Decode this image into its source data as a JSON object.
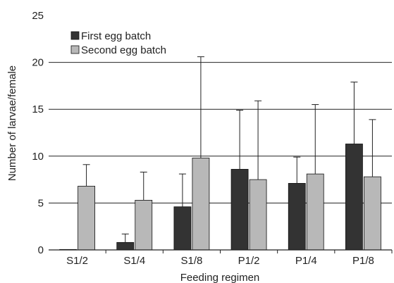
{
  "chart_data": {
    "type": "bar",
    "categories": [
      "S1/2",
      "S1/4",
      "S1/8",
      "P1/2",
      "P1/4",
      "P1/8"
    ],
    "series": [
      {
        "name": "First egg batch",
        "values": [
          0.05,
          0.8,
          4.6,
          8.6,
          7.1,
          11.3
        ],
        "error_upper": [
          0,
          0.9,
          3.5,
          6.3,
          2.8,
          6.6
        ],
        "color": "#333333"
      },
      {
        "name": "Second egg batch",
        "values": [
          6.8,
          5.3,
          9.8,
          7.5,
          8.1,
          7.8
        ],
        "error_upper": [
          2.3,
          3.0,
          10.8,
          8.4,
          7.4,
          6.1
        ],
        "color": "#b8b8b8"
      }
    ],
    "xlabel": "Feeding regimen",
    "ylabel": "Number of larvae/female",
    "ylim": [
      0,
      25
    ],
    "yticks": [
      0,
      5,
      10,
      15,
      20,
      25
    ],
    "ytick_labels": [
      "0",
      "5",
      "10",
      "15",
      "20",
      "25"
    ],
    "grid": "horizontal",
    "legend_position": "top-left",
    "error_bars": "upper"
  }
}
